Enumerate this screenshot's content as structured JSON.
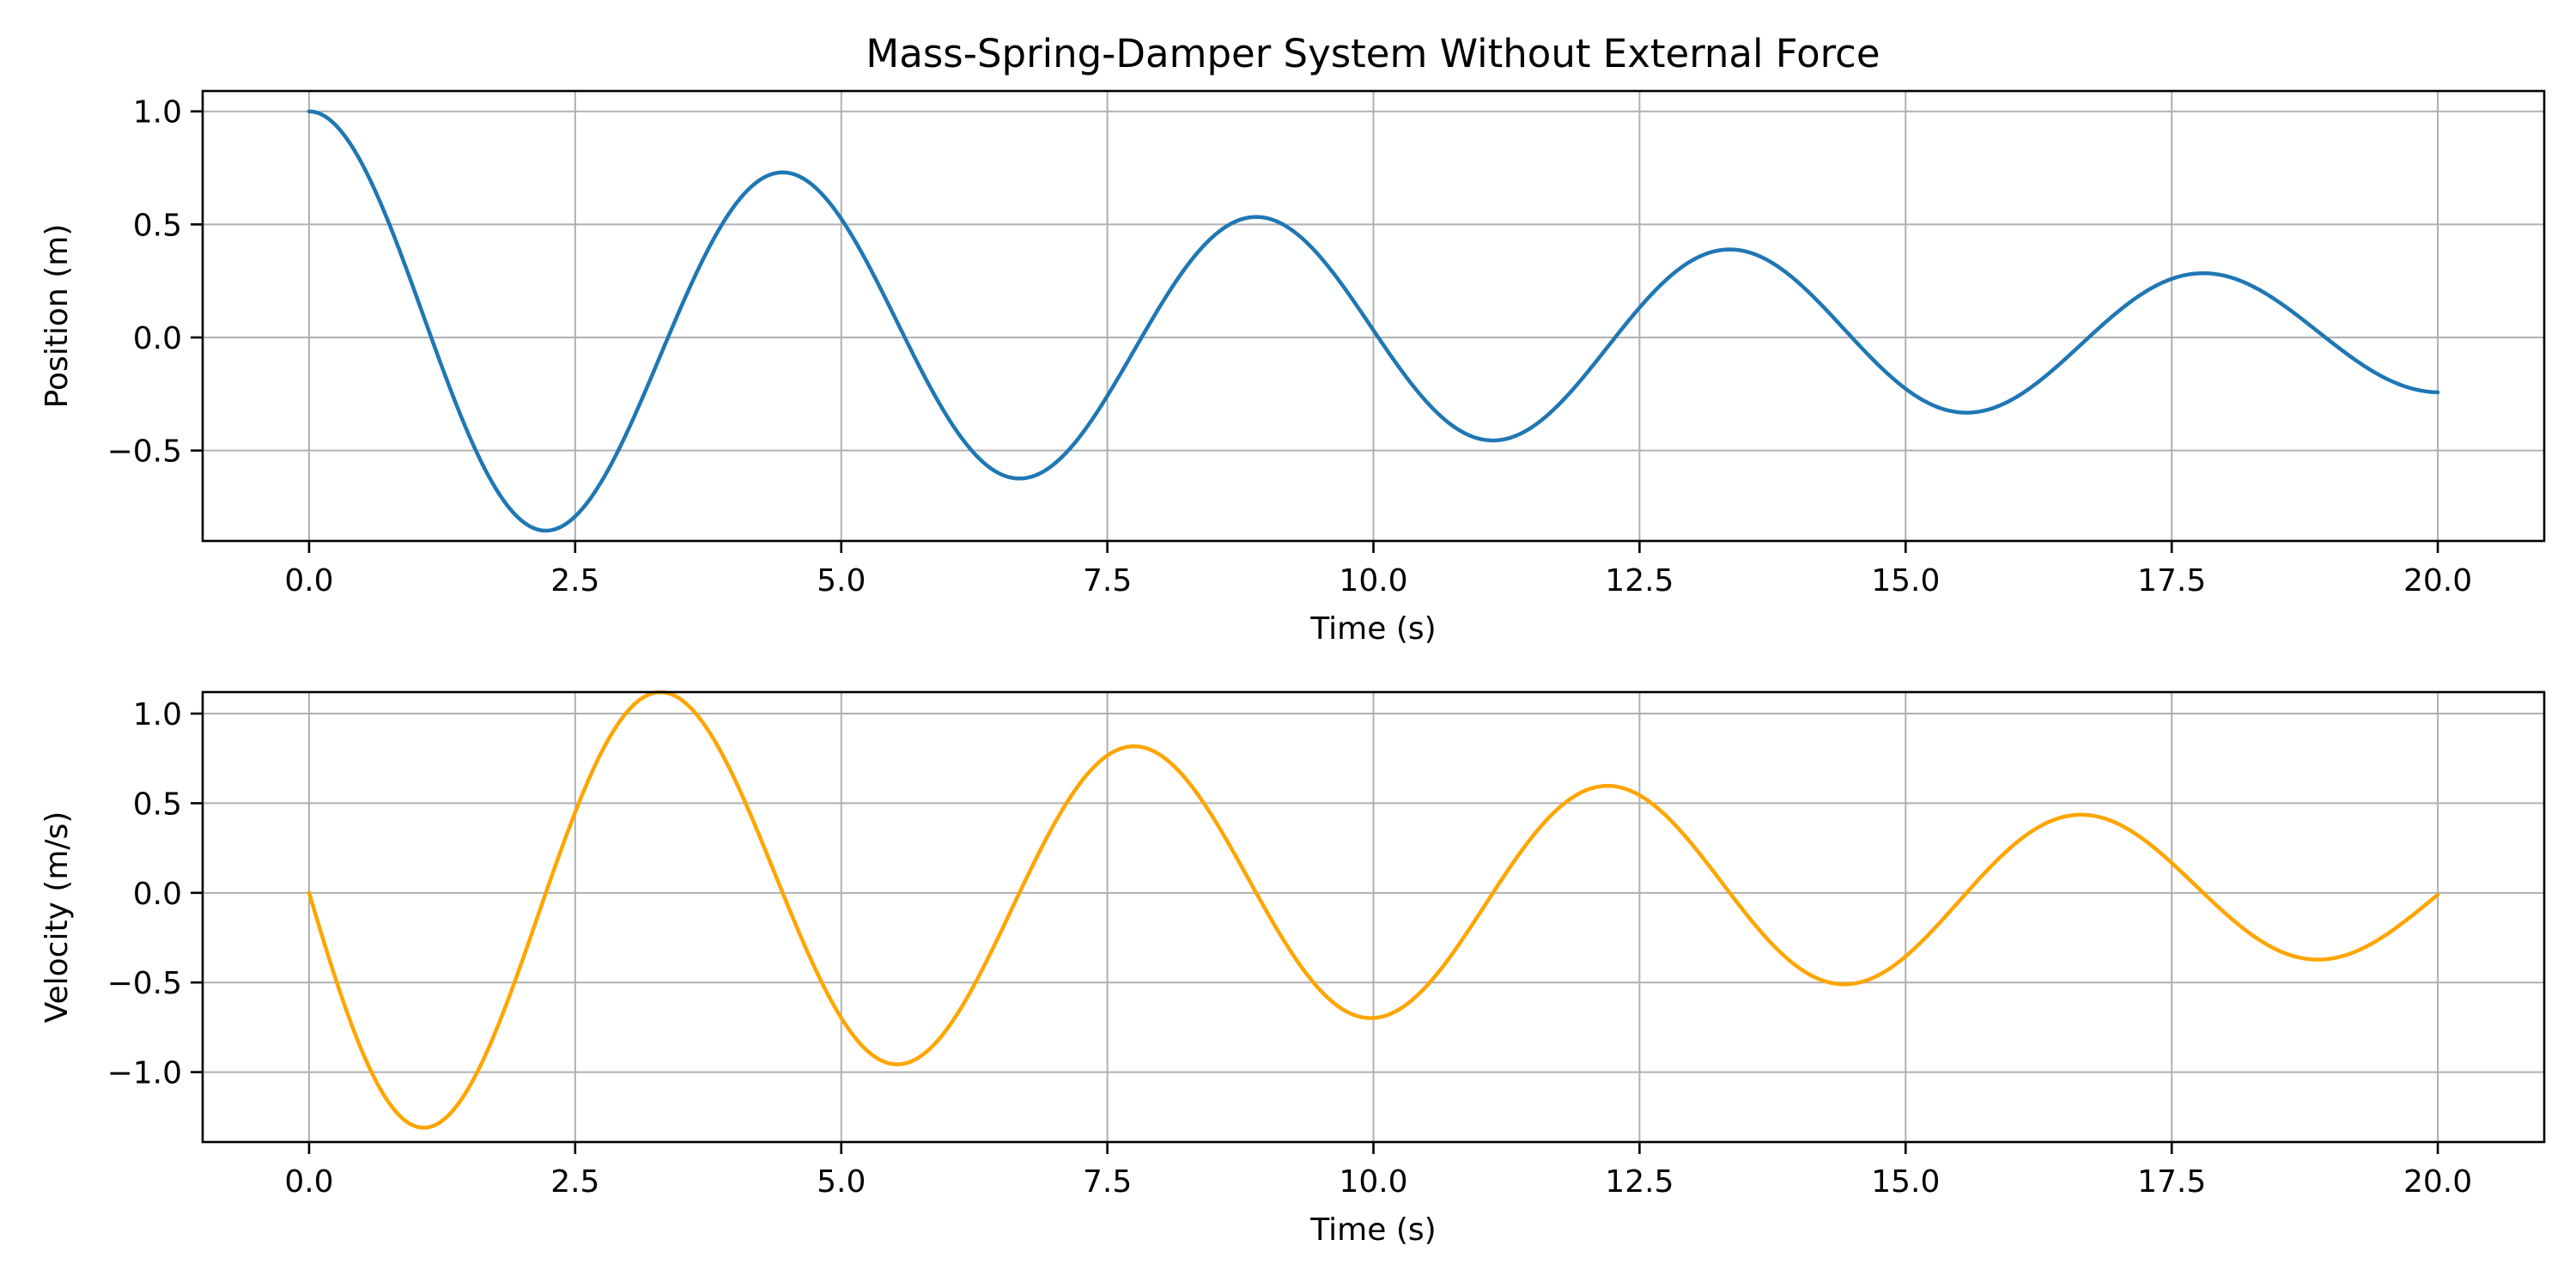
{
  "chart_data": [
    {
      "type": "line",
      "title": "Mass-Spring-Damper System Without External Force",
      "xlabel": "Time (s)",
      "ylabel": "Position (m)",
      "xlim": [
        -1.0,
        21.0
      ],
      "ylim": [
        -0.9,
        1.09
      ],
      "grid": true,
      "xticks": [
        0.0,
        2.5,
        5.0,
        7.5,
        10.0,
        12.5,
        15.0,
        17.5,
        20.0
      ],
      "xtick_labels": [
        "0.0",
        "2.5",
        "5.0",
        "7.5",
        "10.0",
        "12.5",
        "15.0",
        "17.5",
        "20.0"
      ],
      "yticks": [
        -0.5,
        0.0,
        0.5,
        1.0
      ],
      "ytick_labels": [
        "−0.5",
        "0.0",
        "0.5",
        "1.0"
      ],
      "series": [
        {
          "color": "#1f77b4",
          "model": {
            "A": 1.0,
            "zeta": 0.05,
            "omega_n": 1.414,
            "t_start": 0,
            "t_end": 20,
            "quantity": "position"
          }
        }
      ]
    },
    {
      "type": "line",
      "title": "",
      "xlabel": "Time (s)",
      "ylabel": "Velocity (m/s)",
      "xlim": [
        -1.0,
        21.0
      ],
      "ylim": [
        -1.39,
        1.12
      ],
      "grid": true,
      "xticks": [
        0.0,
        2.5,
        5.0,
        7.5,
        10.0,
        12.5,
        15.0,
        17.5,
        20.0
      ],
      "xtick_labels": [
        "0.0",
        "2.5",
        "5.0",
        "7.5",
        "10.0",
        "12.5",
        "15.0",
        "17.5",
        "20.0"
      ],
      "yticks": [
        -1.0,
        -0.5,
        0.0,
        0.5,
        1.0
      ],
      "ytick_labels": [
        "−1.0",
        "−0.5",
        "0.0",
        "0.5",
        "1.0"
      ],
      "series": [
        {
          "color": "#ffa500",
          "model": {
            "A": 1.0,
            "zeta": 0.05,
            "omega_n": 1.414,
            "t_start": 0,
            "t_end": 20,
            "quantity": "velocity"
          }
        }
      ]
    }
  ]
}
